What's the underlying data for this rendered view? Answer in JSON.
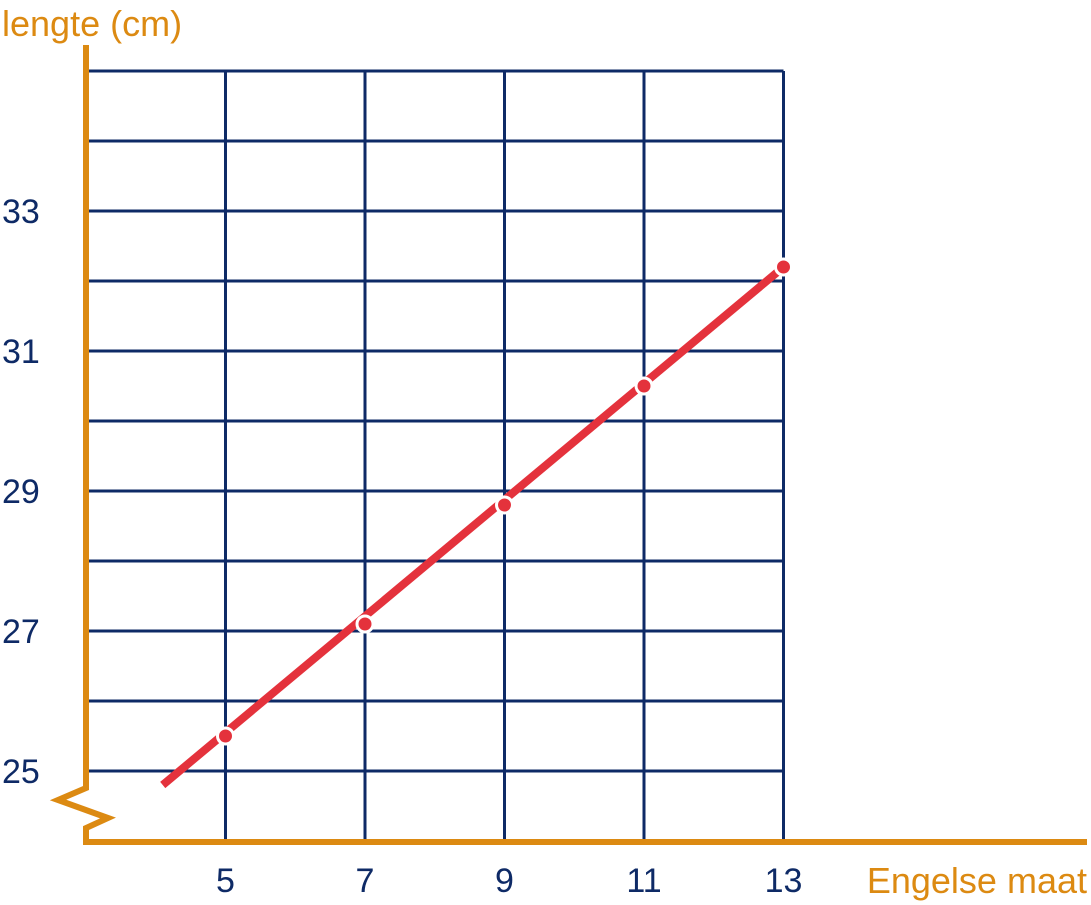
{
  "chart_data": {
    "type": "line",
    "title": "",
    "xlabel": "Engelse maat",
    "ylabel": "lengte (cm)",
    "xlim": [
      3,
      13
    ],
    "ylim": [
      24,
      35
    ],
    "x_ticks": [
      5,
      7,
      9,
      11,
      13
    ],
    "y_ticks": [
      25,
      27,
      29,
      31,
      33
    ],
    "x_tick_labels": [
      "5",
      "7",
      "9",
      "11",
      "13"
    ],
    "y_tick_labels": [
      "25",
      "27",
      "29",
      "31",
      "33"
    ],
    "grid": true,
    "y_axis_break": true,
    "line_extent": {
      "x": [
        4.1,
        13
      ],
      "y": [
        24.8,
        32.2
      ]
    },
    "series": [
      {
        "x": [
          5,
          7,
          9,
          11,
          13
        ],
        "y": [
          25.5,
          27.1,
          28.8,
          30.5,
          32.2
        ]
      }
    ],
    "colors": {
      "axis": "#dc8a12",
      "grid": "#0e2a66",
      "series": "#e4323c",
      "tick_text": "#0e2a66"
    }
  }
}
